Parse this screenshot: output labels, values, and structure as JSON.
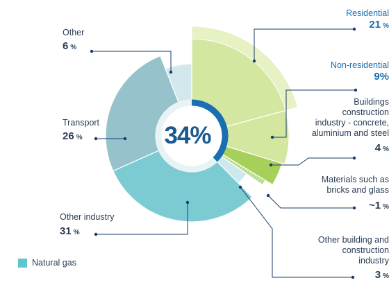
{
  "chart_data": {
    "type": "pie",
    "center_label": "34%",
    "unit": "%",
    "slices": [
      {
        "label": "Residential",
        "value": 21,
        "value_text": "21",
        "color": "#d4e7a0"
      },
      {
        "label": "Non-residential",
        "value": 9,
        "value_text": "9",
        "pct_text": "%",
        "color": "#d4e7a0"
      },
      {
        "label": "Buildings construction industry - concrete, aluminium and steel",
        "value": 4,
        "value_text": "4",
        "color": "#a7d05a"
      },
      {
        "label": "Materials such as bricks and glass",
        "value": 1,
        "value_text": "~1",
        "color": "#c9e6a2"
      },
      {
        "label": "Other building and construction industry",
        "value": 3,
        "value_text": "3",
        "color": "#cde9ee"
      },
      {
        "label": "Other industry",
        "value": 31,
        "value_text": "31",
        "color": "#7ccbd3"
      },
      {
        "label": "Transport",
        "value": 26,
        "value_text": "26",
        "color": "#96c2cc"
      },
      {
        "label": "Other",
        "value": 6,
        "value_text": "6",
        "color": "#d3e8ec"
      }
    ],
    "legend": [
      {
        "label": "Natural gas",
        "color": "#5fc6cf"
      }
    ]
  },
  "labels": {
    "residential": {
      "name": "Residential",
      "value": "21",
      "pct": "%"
    },
    "nonresidential": {
      "name": "Non-residential",
      "value": "9",
      "pct": "%"
    },
    "buildings": {
      "name_l1": "Buildings",
      "name_l2": "construction",
      "name_l3": "industry - concrete,",
      "name_l4": "aluminium and steel",
      "value": "4",
      "pct": "%"
    },
    "materials": {
      "name_l1": "Materials such as",
      "name_l2": "bricks and glass",
      "value": "~1",
      "pct": "%"
    },
    "otherbuilding": {
      "name_l1": "Other building and",
      "name_l2": "construction",
      "name_l3": "industry",
      "value": "3",
      "pct": "%"
    },
    "otherindustry": {
      "name": "Other industry",
      "value": "31",
      "pct": "%"
    },
    "transport": {
      "name": "Transport",
      "value": "26",
      "pct": "%"
    },
    "other": {
      "name": "Other",
      "value": "6",
      "pct": "%"
    }
  },
  "legend": {
    "label": "Natural gas"
  },
  "colors": {
    "accent_blue": "#1a5a8e",
    "ring_blue": "#1a6fb0",
    "text": "#2a3d55",
    "legend_swatch": "#5fc6cf"
  }
}
